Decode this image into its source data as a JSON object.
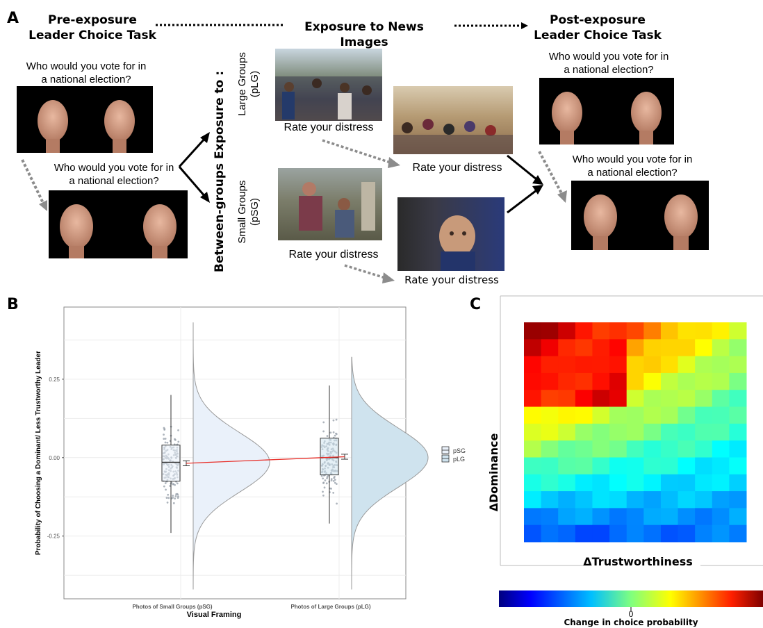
{
  "panel_a": {
    "letter": "A",
    "pre_header_l1": "Pre-exposure",
    "pre_header_l2": "Leader Choice Task",
    "exposure_header": "Exposure to News Images",
    "post_header_l1": "Post-exposure",
    "post_header_l2": "Leader Choice Task",
    "question_l1": "Who would you vote for in",
    "question_l2": "a national election?",
    "between_label": "Between-groups Exposure to :",
    "large_groups_l1": "Large Groups",
    "large_groups_l2": "(pLG)",
    "small_groups_l1": "Small Groups",
    "small_groups_l2": "(pSG)",
    "rate_label": "Rate your distress"
  },
  "panel_b": {
    "letter": "B"
  },
  "panel_c": {
    "letter": "C",
    "ylabel": "ΔDominance",
    "xlabel": "ΔTrustworthiness",
    "colorbar_tick": "0",
    "colorbar_label": "Change in choice probability"
  },
  "chart_data": [
    {
      "type": "violin-box",
      "title": "",
      "xlabel": "Visual Framing",
      "ylabel": "Probability of Choosing a Dominant/ Less Trustworthy Leader",
      "categories": [
        "Photos of Small Groups (pSG)",
        "Photos of Large Groups (pLG)"
      ],
      "yticks": [
        "0.25",
        "0.00",
        "-0.25"
      ],
      "ylim": [
        -0.45,
        0.48
      ],
      "legend": [
        "pSG",
        "pLG"
      ],
      "legend_position": "right",
      "grid": true,
      "colors": {
        "pSG": "#eaf1fa",
        "pLG": "#cfe3ee",
        "mean_line": "#e8302a"
      },
      "series": [
        {
          "name": "pSG",
          "box": {
            "min": -0.24,
            "q1": -0.075,
            "median": -0.015,
            "q3": 0.04,
            "max": 0.2
          },
          "mean": -0.018,
          "se": 0.008,
          "range": [
            -0.42,
            0.43
          ]
        },
        {
          "name": "pLG",
          "box": {
            "min": -0.21,
            "q1": -0.055,
            "median": 0.0,
            "q3": 0.062,
            "max": 0.23
          },
          "mean": 0.003,
          "se": 0.008,
          "range": [
            -0.42,
            0.32
          ]
        }
      ]
    },
    {
      "type": "heatmap",
      "xlabel": "ΔTrustworthiness",
      "ylabel": "ΔDominance",
      "colorbar_label": "Change in choice probability",
      "colorbar_ticks": [
        "0"
      ],
      "colormap": "jet"
    }
  ]
}
